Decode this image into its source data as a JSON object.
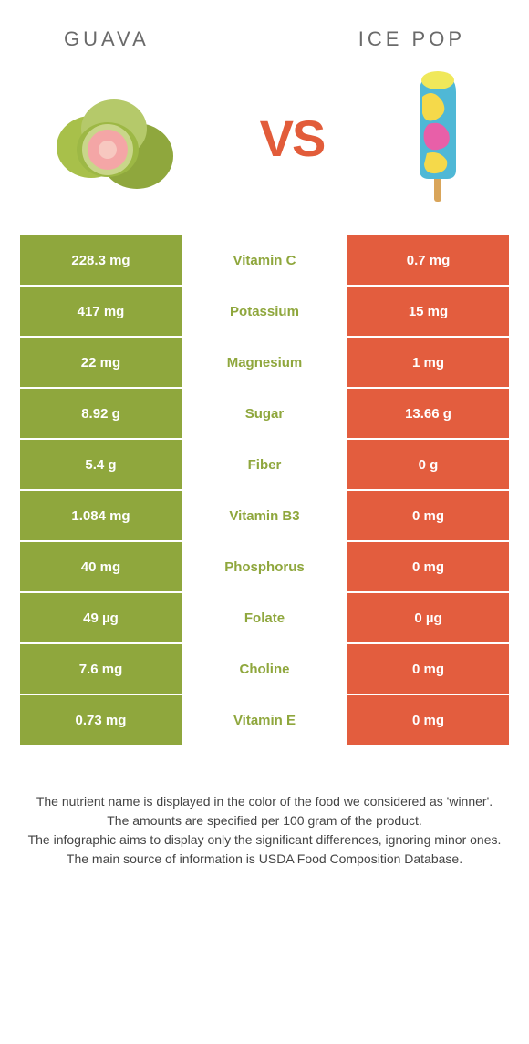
{
  "colors": {
    "guava": "#8fa73d",
    "icepop": "#e35d3e",
    "divider_bg": "#ffffff"
  },
  "header": {
    "left_title": "GUAVA",
    "right_title": "ICE POP",
    "vs": "VS"
  },
  "rows": [
    {
      "nutrient": "Vitamin C",
      "left": "228.3 mg",
      "right": "0.7 mg",
      "winner": "guava"
    },
    {
      "nutrient": "Potassium",
      "left": "417 mg",
      "right": "15 mg",
      "winner": "guava"
    },
    {
      "nutrient": "Magnesium",
      "left": "22 mg",
      "right": "1 mg",
      "winner": "guava"
    },
    {
      "nutrient": "Sugar",
      "left": "8.92 g",
      "right": "13.66 g",
      "winner": "guava"
    },
    {
      "nutrient": "Fiber",
      "left": "5.4 g",
      "right": "0 g",
      "winner": "guava"
    },
    {
      "nutrient": "Vitamin B3",
      "left": "1.084 mg",
      "right": "0 mg",
      "winner": "guava"
    },
    {
      "nutrient": "Phosphorus",
      "left": "40 mg",
      "right": "0 mg",
      "winner": "guava"
    },
    {
      "nutrient": "Folate",
      "left": "49 µg",
      "right": "0 µg",
      "winner": "guava"
    },
    {
      "nutrient": "Choline",
      "left": "7.6 mg",
      "right": "0 mg",
      "winner": "guava"
    },
    {
      "nutrient": "Vitamin E",
      "left": "0.73 mg",
      "right": "0 mg",
      "winner": "guava"
    }
  ],
  "footer": {
    "line1": "The nutrient name is displayed in the color of the food we considered as 'winner'.",
    "line2": "The amounts are specified per 100 gram of the product.",
    "line3": "The infographic aims to display only the significant differences, ignoring minor ones.",
    "line4": "The main source of information is USDA Food Composition Database."
  }
}
